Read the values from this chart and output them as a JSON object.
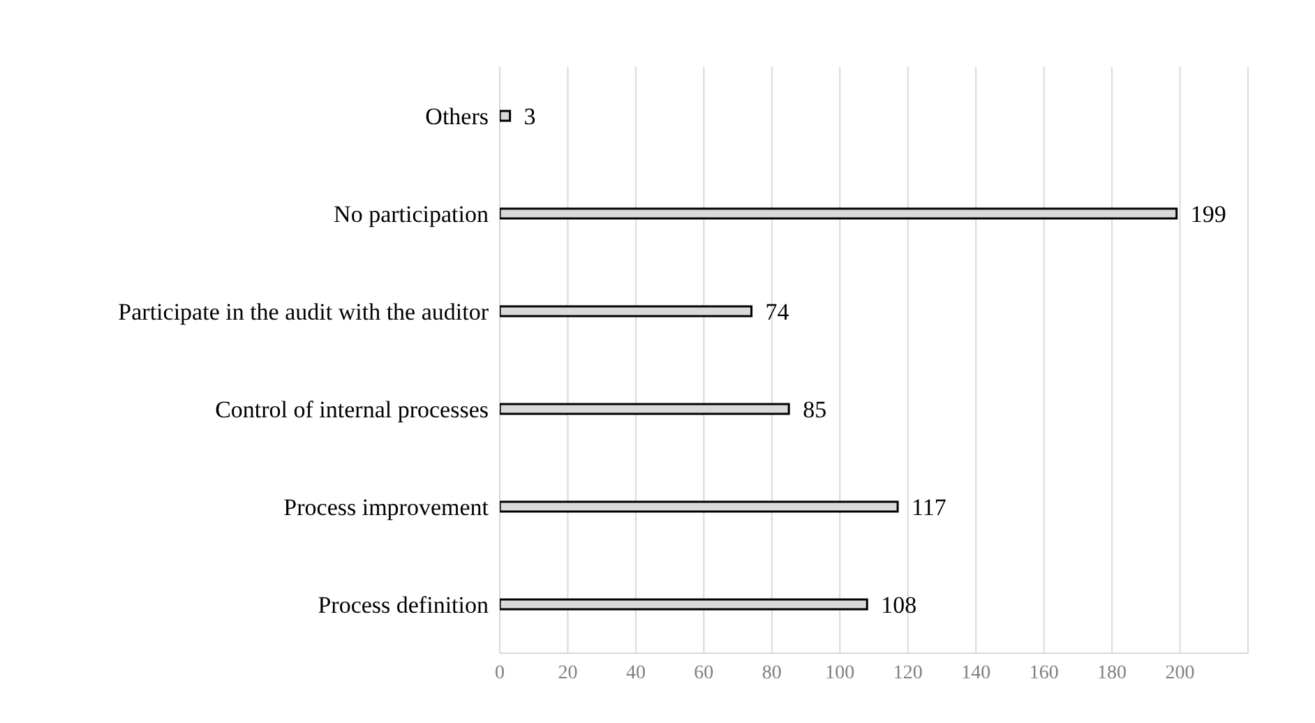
{
  "chart_data": {
    "type": "bar",
    "orientation": "horizontal",
    "categories": [
      "Others",
      "No participation",
      "Participate in the audit with the auditor",
      "Control of internal processes",
      "Process improvement",
      "Process definition"
    ],
    "values": [
      3,
      199,
      74,
      85,
      117,
      108
    ],
    "color": "#d9d9d9",
    "xlim": [
      0,
      220
    ],
    "xticks": [
      0,
      20,
      40,
      60,
      80,
      100,
      120,
      140,
      160,
      180,
      200
    ],
    "grid": "x",
    "data_labels": true
  }
}
